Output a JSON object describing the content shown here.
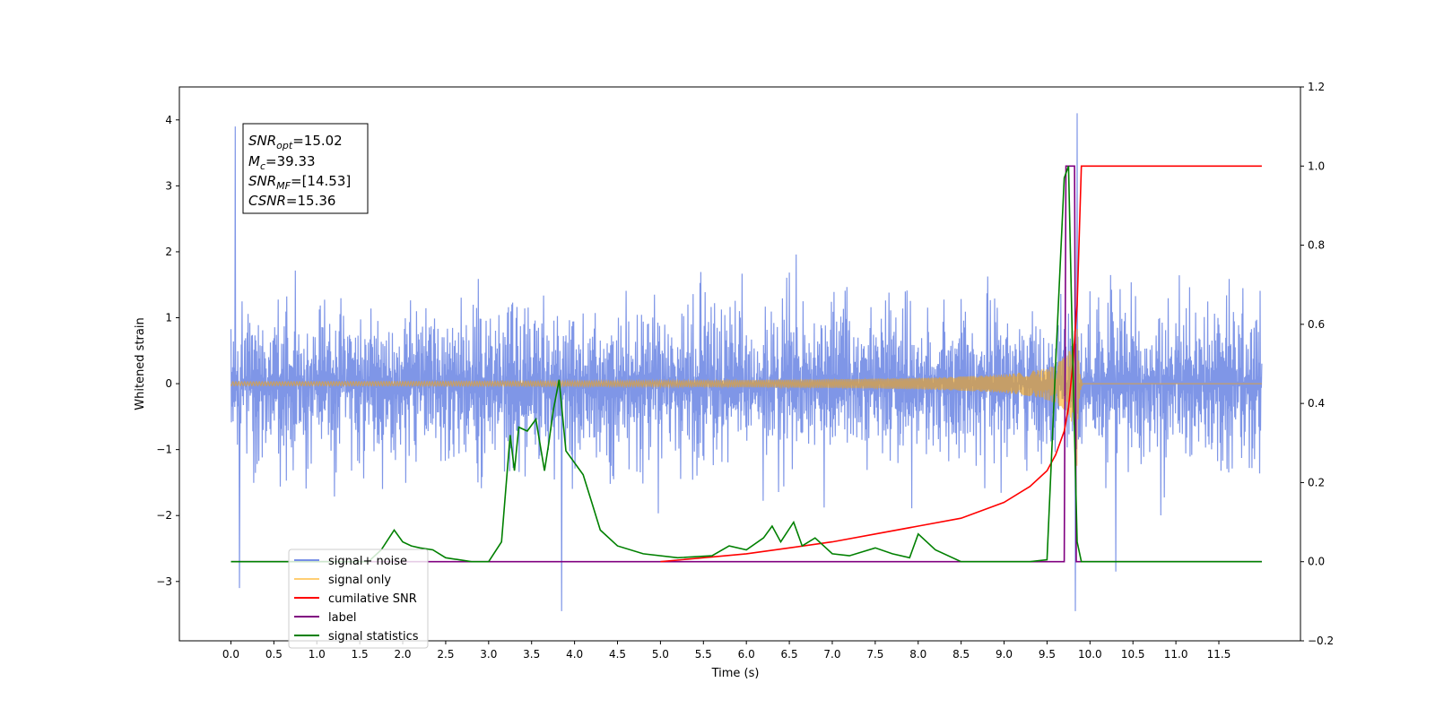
{
  "chart_data": {
    "type": "line",
    "xlabel": "Time (s)",
    "ylabel": "Whitened strain",
    "xlim": [
      -0.6,
      12.45
    ],
    "ylim": [
      -3.9,
      4.5
    ],
    "y2lim": [
      -0.2,
      1.2
    ],
    "xticks": [
      "0.0",
      "0.5",
      "1.0",
      "1.5",
      "2.0",
      "2.5",
      "3.0",
      "3.5",
      "4.0",
      "4.5",
      "5.0",
      "5.5",
      "6.0",
      "6.5",
      "7.0",
      "7.5",
      "8.0",
      "8.5",
      "9.0",
      "9.5",
      "10.0",
      "10.5",
      "11.0",
      "11.5"
    ],
    "yticks": [
      "4",
      "3",
      "2",
      "1",
      "0",
      "−1",
      "−2",
      "−3"
    ],
    "y2ticks": [
      "1.2",
      "1.0",
      "0.8",
      "0.6",
      "0.4",
      "0.2",
      "0.0",
      "−0.2"
    ],
    "grid": false,
    "legend_position": "lower-left",
    "annotation": {
      "snr_opt": "=15.02",
      "mc": "=39.33",
      "snr_mf": "=[14.53]",
      "csnr": "=15.36"
    },
    "series": [
      {
        "name": "signal+ noise",
        "axis": "left",
        "color": "#7890e6",
        "style": "noise",
        "x_range": [
          0.0,
          12.0
        ],
        "amplitude_typical": 1.6,
        "notable_peaks": [
          {
            "x": 0.05,
            "y": 3.9
          },
          {
            "x": 0.1,
            "y": -3.1
          },
          {
            "x": 3.85,
            "y": -3.5
          },
          {
            "x": 9.85,
            "y": 4.1
          },
          {
            "x": 9.83,
            "y": -3.45
          },
          {
            "x": 10.3,
            "y": -2.85
          }
        ]
      },
      {
        "name": "signal only",
        "axis": "left",
        "color": "#ffa500",
        "style": "chirp",
        "merger_time": 9.85,
        "peak_amplitude": 1.3
      },
      {
        "name": "cumilative SNR",
        "axis": "right",
        "color": "#ff0000",
        "x": [
          5.0,
          5.5,
          6.0,
          6.5,
          7.0,
          7.5,
          8.0,
          8.5,
          9.0,
          9.3,
          9.5,
          9.6,
          9.7,
          9.75,
          9.8,
          9.85,
          9.9,
          12.0
        ],
        "y": [
          0.0,
          0.01,
          0.02,
          0.035,
          0.05,
          0.07,
          0.09,
          0.11,
          0.15,
          0.19,
          0.23,
          0.27,
          0.33,
          0.39,
          0.5,
          0.65,
          1.0,
          1.0
        ]
      },
      {
        "name": "label",
        "axis": "right",
        "color": "#800080",
        "x": [
          0.0,
          9.7,
          9.72,
          9.82,
          9.84,
          12.0
        ],
        "y": [
          0.0,
          0.0,
          1.0,
          1.0,
          0.0,
          0.0
        ]
      },
      {
        "name": "signal statistics",
        "axis": "right",
        "color": "#008000",
        "x": [
          0.0,
          1.6,
          1.75,
          1.9,
          2.0,
          2.1,
          2.2,
          2.35,
          2.5,
          2.8,
          3.0,
          3.15,
          3.25,
          3.3,
          3.35,
          3.45,
          3.55,
          3.65,
          3.7,
          3.75,
          3.82,
          3.9,
          4.0,
          4.1,
          4.2,
          4.3,
          4.5,
          4.8,
          5.2,
          5.6,
          5.8,
          6.0,
          6.2,
          6.3,
          6.4,
          6.55,
          6.65,
          6.8,
          7.0,
          7.2,
          7.5,
          7.7,
          7.9,
          8.0,
          8.2,
          8.5,
          9.0,
          9.3,
          9.5,
          9.6,
          9.7,
          9.75,
          9.8,
          9.85,
          9.9,
          12.0
        ],
        "y": [
          0.0,
          0.0,
          0.03,
          0.08,
          0.05,
          0.04,
          0.035,
          0.03,
          0.01,
          0.0,
          0.0,
          0.05,
          0.32,
          0.23,
          0.34,
          0.33,
          0.36,
          0.23,
          0.3,
          0.38,
          0.46,
          0.28,
          0.25,
          0.22,
          0.15,
          0.08,
          0.04,
          0.02,
          0.01,
          0.015,
          0.04,
          0.03,
          0.06,
          0.09,
          0.05,
          0.1,
          0.04,
          0.06,
          0.02,
          0.015,
          0.035,
          0.02,
          0.01,
          0.07,
          0.03,
          0.0,
          0.0,
          0.0,
          0.005,
          0.5,
          0.97,
          1.0,
          0.5,
          0.05,
          0.0,
          0.0
        ]
      }
    ]
  }
}
